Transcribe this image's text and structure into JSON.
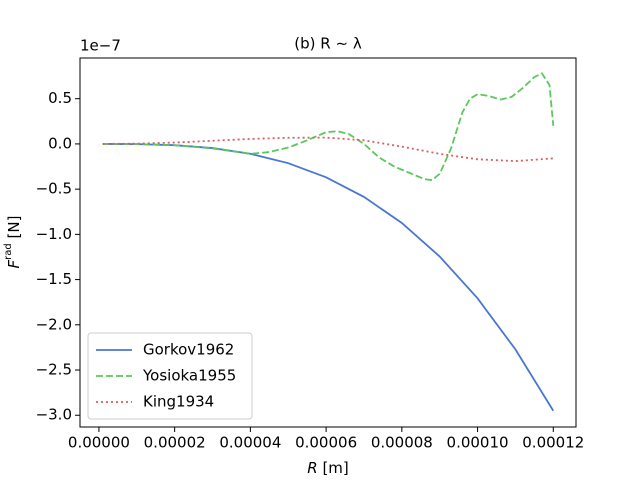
{
  "chart_data": {
    "type": "line",
    "title": "(b)   R ∼ λ",
    "offset_label": "1e−7",
    "xlabel": {
      "symbol": "R",
      "unit": "[m]"
    },
    "ylabel": {
      "symbol": "F",
      "superscript": "rad",
      "unit": "[N]"
    },
    "xlim": [
      -5e-06,
      0.000126
    ],
    "ylim": [
      -3.13,
      0.95
    ],
    "xticks": [
      {
        "value": 0,
        "label": "0.00000"
      },
      {
        "value": 2e-05,
        "label": "0.00002"
      },
      {
        "value": 4e-05,
        "label": "0.00004"
      },
      {
        "value": 6e-05,
        "label": "0.00006"
      },
      {
        "value": 8e-05,
        "label": "0.00008"
      },
      {
        "value": 0.0001,
        "label": "0.00010"
      },
      {
        "value": 0.00012,
        "label": "0.00012"
      }
    ],
    "yticks": [
      {
        "value": 0.5,
        "label": "0.5"
      },
      {
        "value": 0,
        "label": "0.0"
      },
      {
        "value": -0.5,
        "label": "−0.5"
      },
      {
        "value": -1,
        "label": "−1.0"
      },
      {
        "value": -1.5,
        "label": "−1.5"
      },
      {
        "value": -2,
        "label": "−2.0"
      },
      {
        "value": -2.5,
        "label": "−2.5"
      },
      {
        "value": -3,
        "label": "−3.0"
      }
    ],
    "legend": "lower left",
    "series": [
      {
        "name": "Gorkov1962",
        "color": "#4a76d1",
        "dash": "solid",
        "x": [
          1e-06,
          1e-05,
          2e-05,
          3e-05,
          4e-05,
          5e-05,
          6e-05,
          7e-05,
          8e-05,
          9e-05,
          0.0001,
          0.00011,
          0.00012
        ],
        "values": [
          0,
          -0.002,
          -0.014,
          -0.046,
          -0.109,
          -0.213,
          -0.369,
          -0.586,
          -0.874,
          -1.245,
          -1.707,
          -2.272,
          -2.95
        ]
      },
      {
        "name": "Yosioka1955",
        "color": "#5ac85a",
        "dash": "dashed",
        "x": [
          1e-06,
          1e-05,
          2e-05,
          3e-05,
          4e-05,
          4.5e-05,
          5e-05,
          5.5e-05,
          6e-05,
          6.3e-05,
          6.6e-05,
          7e-05,
          7.4e-05,
          7.8e-05,
          8.2e-05,
          8.6e-05,
          8.8e-05,
          9e-05,
          9.3e-05,
          9.6e-05,
          9.8e-05,
          0.0001,
          0.000103,
          0.000106,
          0.000109,
          0.000112,
          0.000115,
          0.000117,
          0.000119,
          0.00012
        ],
        "values": [
          0,
          -0.002,
          -0.015,
          -0.05,
          -0.11,
          -0.09,
          -0.04,
          0.04,
          0.13,
          0.14,
          0.11,
          0.0,
          -0.15,
          -0.25,
          -0.32,
          -0.39,
          -0.4,
          -0.33,
          -0.05,
          0.35,
          0.5,
          0.55,
          0.53,
          0.49,
          0.52,
          0.62,
          0.74,
          0.78,
          0.65,
          0.2
        ]
      },
      {
        "name": "King1934",
        "color": "#d65f5f",
        "dash": "dotted",
        "x": [
          1e-06,
          1e-05,
          2e-05,
          3e-05,
          4e-05,
          5e-05,
          6e-05,
          7e-05,
          8e-05,
          9e-05,
          0.0001,
          0.00011,
          0.00012
        ],
        "values": [
          0,
          0.003,
          0.015,
          0.035,
          0.055,
          0.068,
          0.07,
          0.04,
          -0.03,
          -0.11,
          -0.17,
          -0.19,
          -0.16
        ]
      }
    ]
  }
}
